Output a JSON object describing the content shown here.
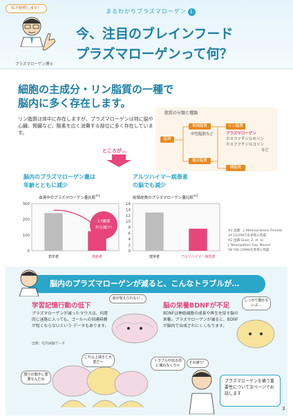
{
  "header": {
    "bubble": "私が説明します！",
    "series_label": "まるわかりプラズマローゲン",
    "series_number": "1",
    "title_line1": "今、注目のブレインフード",
    "title_line2": "プラズマローゲンって何？",
    "doctor_caption": "プラズマローゲン博士"
  },
  "section1": {
    "heading_line1": "細胞の主成分・リン脂質の一種で",
    "heading_line2": "脳内に多く存在します。",
    "body": "リン脂質は体中に存在しますが、プラズマローゲンは特に脳や心臓、腎臓など、酸素を広く消費する部位に多く存在しています。",
    "arrow_label": "ところが…"
  },
  "lipid_diagram": {
    "title": "脂質の分類と種類",
    "nodes": {
      "lipid": "脂質",
      "simple": "単純脂質",
      "neutral": "中性脂肪など",
      "phospho": "リン脂質",
      "plasmalogen": "プラズマローゲン",
      "choline": "ホスファチジルセリン",
      "choline2": "ホスファチジルコリン",
      "etc": "など",
      "complex": "複合脂質",
      "glyco": "糖脂質"
    }
  },
  "chart_left": {
    "title_line1": "脳内のプラズマローゲン量は",
    "title_line2": "年齢とともに減少",
    "subtitle": "血清中のプラズマローゲン量比較",
    "sup": "※1",
    "callout_line1": "17歳頃",
    "callout_line2": "から減少!"
  },
  "chart_right": {
    "title_line1": "アルツハイマー病患者",
    "title_line2": "の脳でも減少",
    "subtitle": "前頭皮質のプラズマローゲン量比較",
    "sup": "※2"
  },
  "notes": [
    "※1 出典：J. Atherosclerose Thromb.",
    "14:12(2007)を参考に作成",
    "※2 出典 Guan, Z. et. al.",
    "J. Neuropathol. Exp. Neurol.",
    "58:740 (1999)を参考に作成"
  ],
  "trouble": {
    "banner": "脳内のプラズマローゲンが減ると、こんなトラブルが…",
    "left_heading": "学習記憶行動の低下",
    "left_text": "プラズマローゲンが減ったマウスは、何度同じ迷路に入っても、ゴールへの到達時間が短くならないという データもあります。",
    "left_source": "出典：社内試験データ",
    "right_heading": "脳の栄養BDNFが不足",
    "right_text": "BDNFは神経細胞の成長や再生を促す脳の栄養。プラズマローゲンが減ると、BDNFが脳内で合成されにくくなります。",
    "bubble_where": "道が覚えられない…",
    "bubble_clear": "しっかり働かないよ…",
    "bubble_mid1": "これ以上減ると大変だ〜",
    "bubble_mid2": "トラブルが出る前に補わなくちゃ",
    "bubble_left": "僕らの働きに重要なんだね",
    "bubble_doc": "その通り！",
    "bottom_box": "プラズマローゲンを補う重要性について次ページでお話します"
  },
  "page_number": "3",
  "chart_data": [
    {
      "type": "bar",
      "title": "脳内のプラズマローゲン量は年齢とともに減少",
      "subtitle": "血清中のプラズマローゲン量比較",
      "categories": [
        "若年者",
        "高齢者"
      ],
      "values": [
        240,
        125
      ],
      "ylim": [
        0,
        300
      ],
      "yticks": [
        0,
        100,
        200,
        300
      ],
      "colors": [
        "#bdbdbd",
        "#e8457c"
      ],
      "annotation": "17歳頃から減少!"
    },
    {
      "type": "bar",
      "title": "アルツハイマー病患者の脳でも減少",
      "subtitle": "前頭皮質のプラズマローゲン量比較",
      "categories": [
        "健常者",
        "アルツハイマー病患者"
      ],
      "values": [
        13,
        7.5
      ],
      "ylim": [
        0,
        16
      ],
      "yticks": [
        0,
        2,
        4,
        6,
        8,
        10,
        12,
        14,
        16
      ],
      "colors": [
        "#bdbdbd",
        "#e8457c"
      ]
    }
  ]
}
